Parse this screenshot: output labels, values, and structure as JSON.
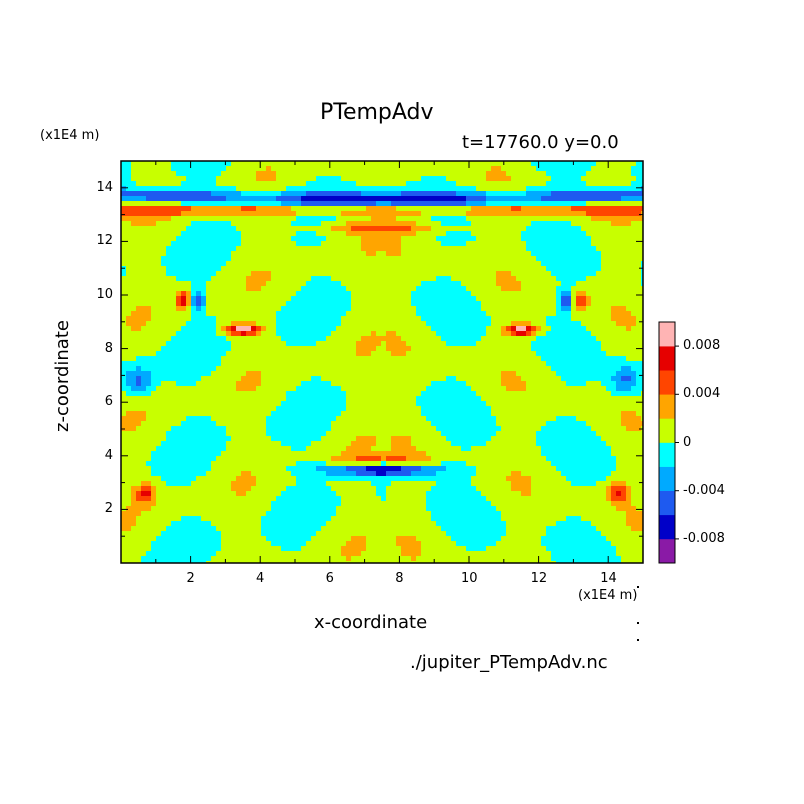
{
  "chart_data": {
    "type": "heatmap",
    "title": "PTempAdv",
    "subtitle": "t=17760.0 y=0.0",
    "xlabel": "x-coordinate",
    "ylabel": "z-coordinate",
    "x_unit": "(x1E4 m)",
    "y_unit": "(x1E4 m)",
    "xlim": [
      0,
      15
    ],
    "ylim": [
      0,
      15
    ],
    "x_ticks": [
      "2",
      "4",
      "6",
      "8",
      "10",
      "12",
      "14"
    ],
    "y_ticks": [
      "2",
      "4",
      "6",
      "8",
      "10",
      "12",
      "14"
    ],
    "colorbar": {
      "levels": [
        -0.01,
        -0.008,
        -0.006,
        -0.004,
        -0.002,
        0,
        0.002,
        0.004,
        0.006,
        0.008,
        0.01
      ],
      "colors": [
        "#8a1aa6",
        "#0000c8",
        "#1e5af0",
        "#00aaff",
        "#00ffff",
        "#c8ff00",
        "#ffa500",
        "#ff4500",
        "#e60000",
        "#ffb4b4"
      ],
      "tick_values": [
        -0.008,
        -0.004,
        0,
        0.004,
        0.008
      ],
      "tick_labels": [
        "-0.008",
        "-0.004",
        "0",
        "0.004",
        "0.008"
      ]
    },
    "grid": false,
    "legend": "colorbar-right"
  },
  "footer": "./jupiter_PTempAdv.nc"
}
